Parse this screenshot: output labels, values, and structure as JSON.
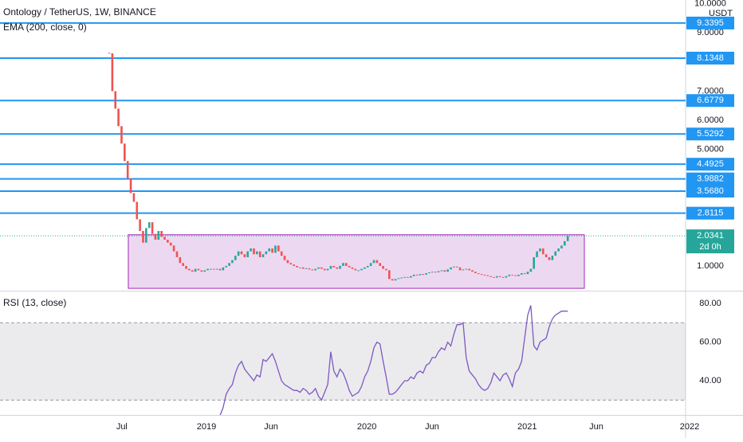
{
  "chart_data": {
    "type": "candlestick",
    "title": "Ontology / TetherUS, 1W, BINANCE",
    "indicator": "EMA (200, close, 0)",
    "currency": "USDT",
    "xlim": [
      -35.5,
      187.3
    ],
    "xticks": [
      {
        "value": 4.1,
        "label": "Jul"
      },
      {
        "value": 31.6,
        "label": "2019"
      },
      {
        "value": 52.6,
        "label": "Jun"
      },
      {
        "value": 83.7,
        "label": "2020"
      },
      {
        "value": 104.9,
        "label": "Jun"
      },
      {
        "value": 135.8,
        "label": "2021"
      },
      {
        "value": 158.3,
        "label": "Jun"
      },
      {
        "value": 188.6,
        "label": "2022"
      }
    ],
    "ylim": [
      0.15,
      10.13
    ],
    "yticks": [
      {
        "value": 1,
        "label": "1.0000"
      },
      {
        "value": 5,
        "label": "5.0000"
      },
      {
        "value": 6,
        "label": "6.0000"
      },
      {
        "value": 7,
        "label": "7.0000"
      },
      {
        "value": 9,
        "label": "9.0000"
      },
      {
        "value": 10,
        "label": "10.0000"
      }
    ],
    "up_color": "#26a69a",
    "down_color": "#ef5350",
    "values": [
      8.3,
      7.0,
      6.4,
      5.8,
      5.2,
      4.6,
      4.0,
      3.5,
      3.2,
      2.6,
      2.2,
      1.8,
      2.3,
      2.5,
      2.1,
      1.9,
      2.2,
      2.0,
      1.9,
      1.8,
      1.7,
      1.5,
      1.3,
      1.1,
      1.0,
      0.9,
      0.85,
      0.8,
      0.9,
      0.85,
      0.8,
      0.85,
      0.9,
      0.9,
      0.88,
      0.9,
      0.85,
      0.95,
      1.0,
      1.1,
      1.2,
      1.35,
      1.5,
      1.4,
      1.3,
      1.5,
      1.6,
      1.4,
      1.5,
      1.3,
      1.4,
      1.5,
      1.6,
      1.45,
      1.7,
      1.5,
      1.35,
      1.2,
      1.1,
      1.05,
      1.0,
      0.95,
      0.95,
      0.9,
      0.92,
      0.88,
      0.85,
      0.9,
      0.95,
      0.9,
      0.85,
      0.9,
      1.0,
      0.95,
      0.9,
      1.0,
      1.1,
      1.0,
      0.95,
      0.9,
      0.85,
      0.85,
      0.9,
      0.95,
      1.0,
      1.1,
      1.2,
      1.1,
      1.0,
      0.9,
      0.85,
      0.55,
      0.5,
      0.55,
      0.58,
      0.6,
      0.62,
      0.6,
      0.65,
      0.7,
      0.68,
      0.72,
      0.7,
      0.75,
      0.78,
      0.8,
      0.78,
      0.82,
      0.85,
      0.8,
      0.88,
      0.95,
      0.98,
      0.95,
      0.85,
      0.88,
      0.9,
      0.85,
      0.8,
      0.75,
      0.72,
      0.7,
      0.68,
      0.65,
      0.62,
      0.6,
      0.65,
      0.62,
      0.6,
      0.65,
      0.7,
      0.68,
      0.65,
      0.7,
      0.75,
      0.72,
      0.8,
      0.9,
      1.3,
      1.5,
      1.6,
      1.4,
      1.3,
      1.2,
      1.35,
      1.5,
      1.6,
      1.7,
      1.85,
      2.0341
    ],
    "last_price": 2.0341,
    "countdown": "2d 0h",
    "levels": {
      "color": "#2196f3",
      "values": [
        9.3395,
        8.1348,
        6.6779,
        5.5292,
        4.4925,
        3.9882,
        {
          "value": 3.568,
          "label": "3.5680"
        },
        2.8115
      ]
    },
    "box": {
      "color": "#9c27b0",
      "x": [
        6.2,
        154.4
      ],
      "y": [
        0.23,
        2.07
      ]
    },
    "rsi": {
      "name": "RSI (13, close)",
      "color": "#7e57c2",
      "ylim": [
        22.3,
        86.2
      ],
      "yticks": [
        {
          "value": 40,
          "label": "40.00"
        },
        {
          "value": 60,
          "label": "60.00"
        },
        {
          "value": 80,
          "label": "80.00"
        }
      ],
      "band": [
        30,
        70
      ],
      "values": [
        null,
        null,
        null,
        null,
        null,
        null,
        null,
        null,
        null,
        null,
        null,
        null,
        null,
        null,
        null,
        null,
        null,
        null,
        null,
        null,
        null,
        null,
        null,
        null,
        null,
        null,
        null,
        null,
        null,
        null,
        null,
        null,
        null,
        null,
        18,
        20,
        22,
        26,
        33,
        36,
        38,
        44,
        48,
        50,
        46,
        44,
        42,
        40,
        43,
        42,
        51,
        50,
        52,
        54,
        50,
        45,
        40,
        38,
        37,
        36,
        35,
        35,
        34,
        36,
        35,
        33,
        34,
        36,
        32,
        30,
        34,
        38,
        55,
        45,
        42,
        46,
        44,
        40,
        35,
        32,
        33,
        34,
        37,
        42,
        45,
        50,
        57,
        60,
        59,
        50,
        42,
        33,
        33,
        34,
        36,
        38,
        40,
        40,
        42,
        41,
        44,
        45,
        44,
        48,
        49,
        52,
        52,
        55,
        57,
        56,
        60,
        58,
        64,
        69,
        69,
        70,
        52,
        45,
        43,
        41,
        38,
        36,
        35,
        36,
        39,
        44,
        42,
        40,
        43,
        44,
        41,
        37,
        44,
        46,
        50,
        62,
        74,
        79,
        58,
        56,
        60,
        61,
        62,
        68,
        72,
        74,
        75,
        76,
        76,
        76
      ]
    }
  }
}
